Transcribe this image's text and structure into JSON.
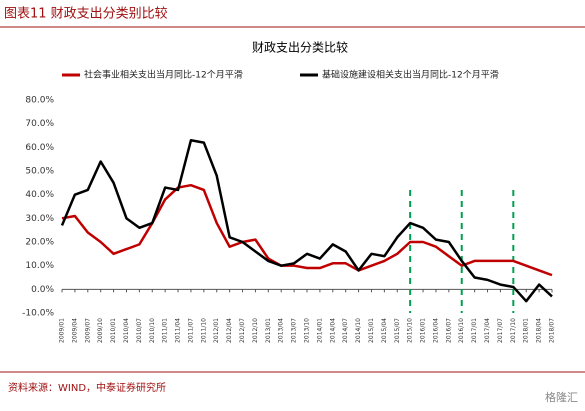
{
  "header": "图表11 财政支出分类别比较",
  "source": "资料来源：WIND，中泰证券研究所",
  "watermark": "格隆汇",
  "chart_data": {
    "type": "line",
    "title": "财政支出分类比较",
    "categories": [
      "2009/01",
      "2009/04",
      "2009/07",
      "2009/10",
      "2010/01",
      "2010/04",
      "2010/07",
      "2010/10",
      "2011/01",
      "2011/04",
      "2011/07",
      "2011/10",
      "2012/01",
      "2012/04",
      "2012/07",
      "2012/10",
      "2013/01",
      "2013/04",
      "2013/07",
      "2013/10",
      "2014/01",
      "2014/04",
      "2014/07",
      "2014/10",
      "2015/01",
      "2015/04",
      "2015/07",
      "2015/10",
      "2016/01",
      "2016/04",
      "2016/07",
      "2016/10",
      "2017/01",
      "2017/04",
      "2017/07",
      "2017/10",
      "2018/01",
      "2018/04",
      "2018/07"
    ],
    "series": [
      {
        "name": "社会事业相关支出当月同比-12个月平滑",
        "color": "#c00000",
        "values": [
          30,
          31,
          24,
          20,
          15,
          17,
          19,
          28,
          38,
          43,
          44,
          42,
          28,
          18,
          20,
          21,
          13,
          10,
          10,
          9,
          9,
          11,
          11,
          8,
          10,
          12,
          15,
          20,
          20,
          18,
          14,
          10,
          12,
          12,
          12,
          12,
          10,
          8,
          6
        ]
      },
      {
        "name": "基础设施建设相关支出当月同比-12个月平滑",
        "color": "#000000",
        "values": [
          27,
          40,
          42,
          54,
          45,
          30,
          26,
          28,
          43,
          42,
          63,
          62,
          48,
          22,
          20,
          16,
          12,
          10,
          11,
          15,
          13,
          19,
          16,
          8,
          15,
          14,
          22,
          28,
          26,
          21,
          20,
          12,
          5,
          4,
          2,
          1,
          -5,
          2,
          -3
        ]
      }
    ],
    "ylim": [
      -10,
      80
    ],
    "yticks": [
      {
        "value": -10,
        "label": "-10.0%"
      },
      {
        "value": 0,
        "label": "0.0%"
      },
      {
        "value": 10,
        "label": "10.0%"
      },
      {
        "value": 20,
        "label": "20.0%"
      },
      {
        "value": 30,
        "label": "30.0%"
      },
      {
        "value": 40,
        "label": "40.0%"
      },
      {
        "value": 50,
        "label": "50.0%"
      },
      {
        "value": 60,
        "label": "60.0%"
      },
      {
        "value": 70,
        "label": "70.0%"
      },
      {
        "value": 80,
        "label": "80.0%"
      }
    ],
    "vlines": [
      "2015/10",
      "2016/10",
      "2017/10"
    ],
    "vline_color": "#00a050"
  }
}
